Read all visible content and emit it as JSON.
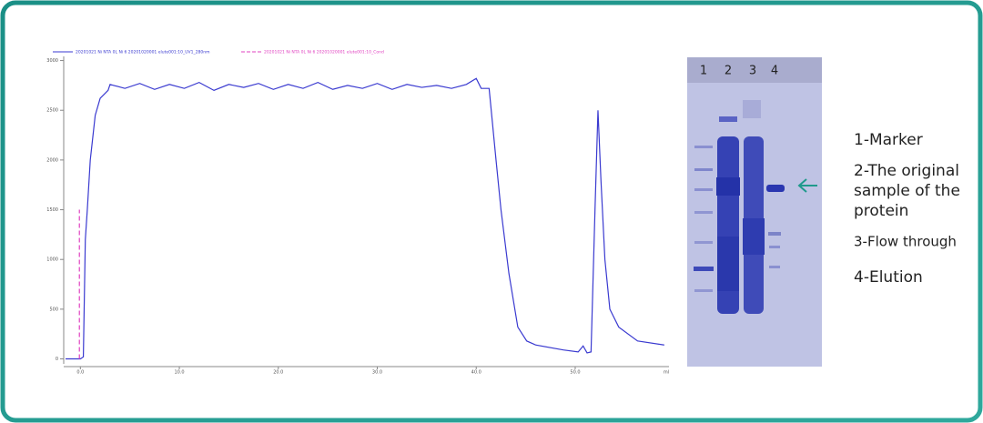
{
  "chart_data": {
    "type": "line",
    "x_unit_label": "ml",
    "series": [
      {
        "name": "20201021 Ni NTA 0L Ni 6 20201020001 elute001:10_UV1_280nm",
        "color": "#3a3ad0",
        "dash": false,
        "x": [
          -1.5,
          0.0,
          0.3,
          0.5,
          0.7,
          1.0,
          1.5,
          2.0,
          2.8,
          3.0,
          4.5,
          6,
          7.5,
          9,
          10.5,
          12,
          13.5,
          15,
          16.5,
          18,
          19.5,
          21,
          22.5,
          24,
          25.5,
          27,
          28.5,
          30,
          31.5,
          33,
          34.5,
          36,
          37.5,
          39,
          40,
          40.5,
          41.3,
          42,
          42.5,
          43.3,
          44.2,
          45.1,
          46,
          48.8,
          50.3,
          50.8,
          51.2,
          51.6,
          52.0,
          52.3,
          52.6,
          53.0,
          53.5,
          54.4,
          56.3,
          59
        ],
        "values": [
          0,
          0,
          20,
          1200,
          1500,
          2000,
          2450,
          2620,
          2700,
          2760,
          2720,
          2770,
          2710,
          2760,
          2720,
          2780,
          2700,
          2760,
          2730,
          2770,
          2710,
          2760,
          2720,
          2780,
          2710,
          2750,
          2720,
          2770,
          2710,
          2760,
          2730,
          2750,
          2720,
          2760,
          2820,
          2720,
          2720,
          2000,
          1500,
          860,
          320,
          180,
          140,
          90,
          70,
          130,
          60,
          70,
          1500,
          2500,
          1800,
          1000,
          500,
          320,
          180,
          140
        ]
      },
      {
        "name": "20201021 Ni NTA 0L Ni 6 20201020001 elute001:10_Cond",
        "color": "#e040c0",
        "dash": true,
        "x": [
          -0.1,
          -0.1
        ],
        "values": [
          0,
          1500
        ]
      }
    ],
    "xlim": [
      -1.5,
      59.2
    ],
    "xticks": [
      {
        "value": 0,
        "label": "0.0"
      },
      {
        "value": 10,
        "label": "10.0"
      },
      {
        "value": 20,
        "label": "20.0"
      },
      {
        "value": 30,
        "label": "30.0"
      },
      {
        "value": 40,
        "label": "40.0"
      },
      {
        "value": 50,
        "label": "50.0"
      }
    ],
    "ylim": [
      -50,
      3060
    ],
    "yticks": [
      0,
      500,
      1000,
      1500,
      2000,
      2500,
      3000
    ]
  },
  "gel": {
    "lanes": [
      "1",
      "2",
      "3",
      "4"
    ]
  },
  "key": {
    "items": [
      [
        "1-Marker"
      ],
      [
        "2-The original",
        "sample of the",
        "protein"
      ],
      [
        "3-Flow through"
      ],
      [
        "4-Elution"
      ]
    ]
  }
}
